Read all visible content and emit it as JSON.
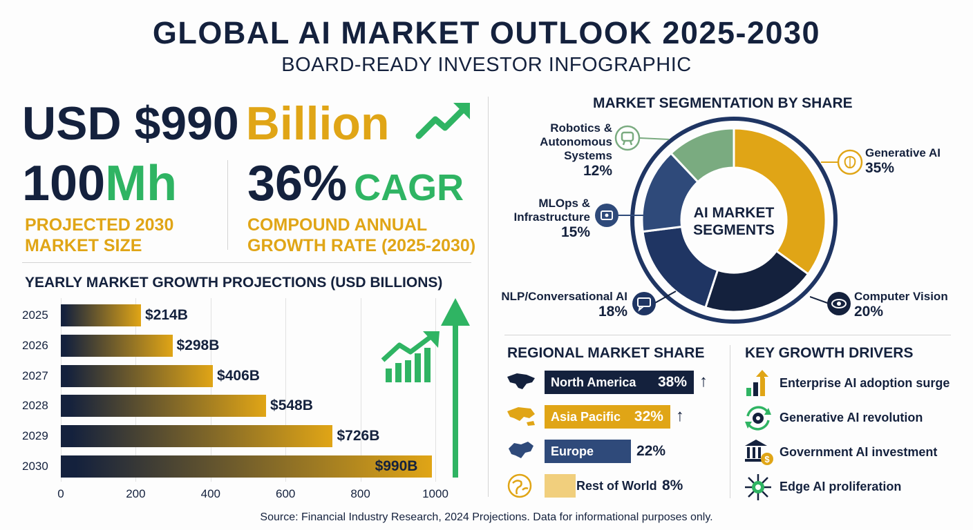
{
  "header": {
    "title": "GLOBAL AI MARKET OUTLOOK 2025-2030",
    "subtitle": "BOARD-READY INVESTOR INFOGRAPHIC"
  },
  "kpis": {
    "usd_prefix": "USD $990",
    "usd_suffix": "Billion",
    "mh_main": "100",
    "mh_accent": "Mh",
    "mh_caption_1": "PROJECTED 2030",
    "mh_caption_2": "MARKET SIZE",
    "cagr_main": "36%",
    "cagr_accent": "CAGR",
    "cagr_caption_1": "COMPOUND ANNUAL",
    "cagr_caption_2": "GROWTH RATE (2025-2030)"
  },
  "colors": {
    "navy": "#14213d",
    "gold": "#e0a516",
    "green": "#2fb463",
    "sage": "#7aab80",
    "slate": "#2f4a7a",
    "sand": "#f1cf7d"
  },
  "chart_data": [
    {
      "type": "bar",
      "orientation": "horizontal",
      "title": "YEARLY MARKET GROWTH PROJECTIONS (USD BILLIONS)",
      "categories": [
        "2025",
        "2026",
        "2027",
        "2028",
        "2029",
        "2030"
      ],
      "values": [
        214,
        298,
        406,
        548,
        726,
        990
      ],
      "value_labels": [
        "$214B",
        "$298B",
        "$406B",
        "$548B",
        "$726B",
        "$990B"
      ],
      "xlim": [
        0,
        1000
      ],
      "ticks": [
        "0",
        "200",
        "400",
        "600",
        "800",
        "1000"
      ],
      "grid": true
    },
    {
      "type": "pie",
      "title": "MARKET SEGMENTATION BY SHARE",
      "center_label_1": "AI MARKET",
      "center_label_2": "SEGMENTS",
      "slices": [
        {
          "label": "Generative AI",
          "value": 35,
          "pct": "35%",
          "color": "#e0a516",
          "icon": "brain-icon"
        },
        {
          "label": "Computer Vision",
          "value": 20,
          "pct": "20%",
          "color": "#14213d",
          "icon": "eye-icon"
        },
        {
          "label": "NLP/Conversational AI",
          "value": 18,
          "pct": "18%",
          "color": "#1f3563",
          "icon": "chat-icon"
        },
        {
          "label": "MLOps & Infrastructure",
          "value": 15,
          "pct": "15%",
          "color": "#2f4a7a",
          "icon": "network-icon"
        },
        {
          "label": "Robotics & Autonomous Systems",
          "value": 12,
          "pct": "12%",
          "color": "#7aab80",
          "icon": "robot-icon"
        }
      ]
    },
    {
      "type": "bar",
      "title": "REGIONAL MARKET SHARE",
      "categories": [
        "North America",
        "Asia Pacific",
        "Europe",
        "Rest of World"
      ],
      "values": [
        38,
        32,
        22,
        8
      ],
      "value_labels": [
        "38%",
        "32%",
        "22%",
        "8%"
      ],
      "trend_up": [
        true,
        true,
        false,
        false
      ]
    }
  ],
  "segment_labels": {
    "robotics_1": "Robotics &",
    "robotics_2": "Autonomous",
    "robotics_3": "Systems",
    "mlops_1": "MLOps &",
    "mlops_2": "Infrastructure",
    "nlp_1": "NLP/Conversational AI"
  },
  "drivers": {
    "title": "KEY GROWTH DRIVERS",
    "items": [
      {
        "label": "Enterprise AI adoption surge",
        "icon": "growth-bars-icon"
      },
      {
        "label": "Generative AI revolution",
        "icon": "gear-cycle-icon"
      },
      {
        "label": "Government AI investment",
        "icon": "bank-dollar-icon"
      },
      {
        "label": "Edge AI proliferation",
        "icon": "edge-network-icon"
      }
    ]
  },
  "footer": {
    "source": "Source: Financial Industry Research, 2024 Projections. Data for informational purposes only."
  }
}
